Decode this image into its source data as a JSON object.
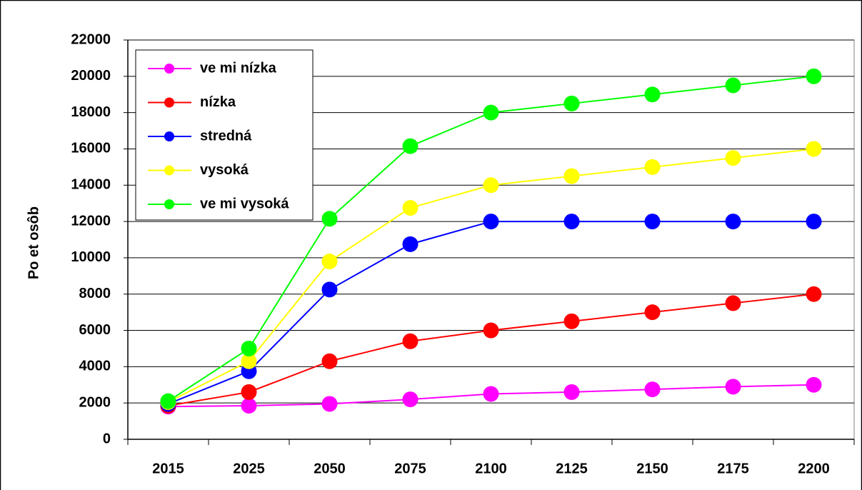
{
  "chart_data": {
    "type": "line",
    "y_label": "Po et osôb",
    "categories": [
      "2015",
      "2025",
      "2050",
      "2075",
      "2100",
      "2125",
      "2150",
      "2175",
      "2200"
    ],
    "series": [
      {
        "name": "ve mi nízka",
        "color": "#ff00ff",
        "values": [
          1800,
          1850,
          1950,
          2200,
          2500,
          2600,
          2750,
          2900,
          3000
        ]
      },
      {
        "name": "nízka",
        "color": "#ff0000",
        "values": [
          1850,
          2600,
          4300,
          5400,
          6000,
          6500,
          7000,
          7500,
          8000
        ]
      },
      {
        "name": "stredná",
        "color": "#0000ff",
        "values": [
          1950,
          3750,
          8250,
          10750,
          12000,
          12000,
          12000,
          12000,
          12000
        ]
      },
      {
        "name": "vysoká",
        "color": "#ffff00",
        "values": [
          2050,
          4300,
          9800,
          12750,
          14000,
          14500,
          15000,
          15500,
          16000
        ]
      },
      {
        "name": "ve mi vysoká",
        "color": "#00ff00",
        "values": [
          2100,
          5000,
          12150,
          16150,
          18000,
          18500,
          19000,
          19500,
          20000
        ]
      }
    ],
    "ylim": [
      0,
      22000
    ],
    "yticks": [
      0,
      2000,
      4000,
      6000,
      8000,
      10000,
      12000,
      14000,
      16000,
      18000,
      20000,
      22000
    ],
    "grid": true,
    "legend": "top-left"
  }
}
